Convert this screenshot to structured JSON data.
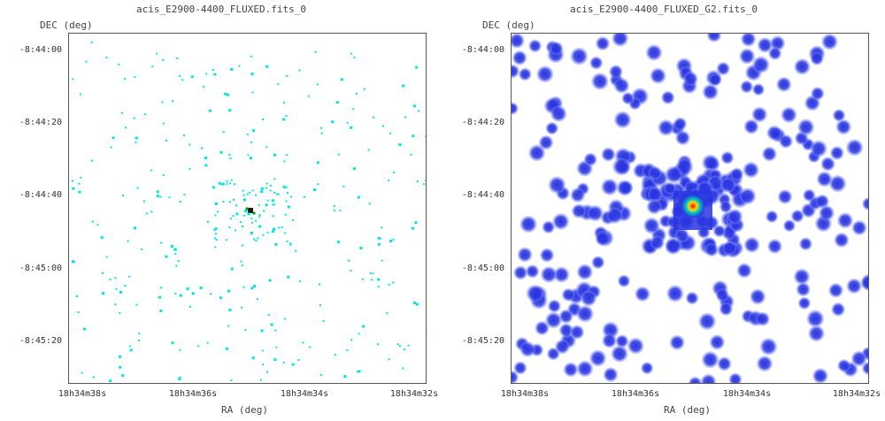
{
  "panels": [
    {
      "id": "left",
      "title": "acis_E2900-4400_FLUXED.fits_0",
      "ylabel": "DEC (deg)",
      "xlabel": "RA (deg)",
      "yticks": [
        "-8:44:00",
        "-8:44:20",
        "-8:44:40",
        "-8:45:00",
        "-8:45:20"
      ],
      "xticks": [
        "18h34m38s",
        "18h34m36s",
        "18h34m34s",
        "18h34m32s"
      ],
      "colors": {
        "sparse": "#00e5e5",
        "source": "#00a000",
        "core": "#1a1a1a"
      }
    },
    {
      "id": "right",
      "title": "acis_E2900-4400_FLUXED_G2.fits_0",
      "ylabel": "DEC (deg)",
      "xlabel": "RA (deg)",
      "yticks": [
        "-8:44:00",
        "-8:44:20",
        "-8:44:40",
        "-8:45:00",
        "-8:45:20"
      ],
      "xticks": [
        "18h34m38s",
        "18h34m36s",
        "18h34m34s",
        "18h34m32s"
      ],
      "colors": {
        "blob": "#2a35e0",
        "halo": "#8a9aff",
        "core_hot": "#e01010",
        "core_warm": "#ffd800",
        "core_mid": "#00c8c0"
      }
    }
  ]
}
